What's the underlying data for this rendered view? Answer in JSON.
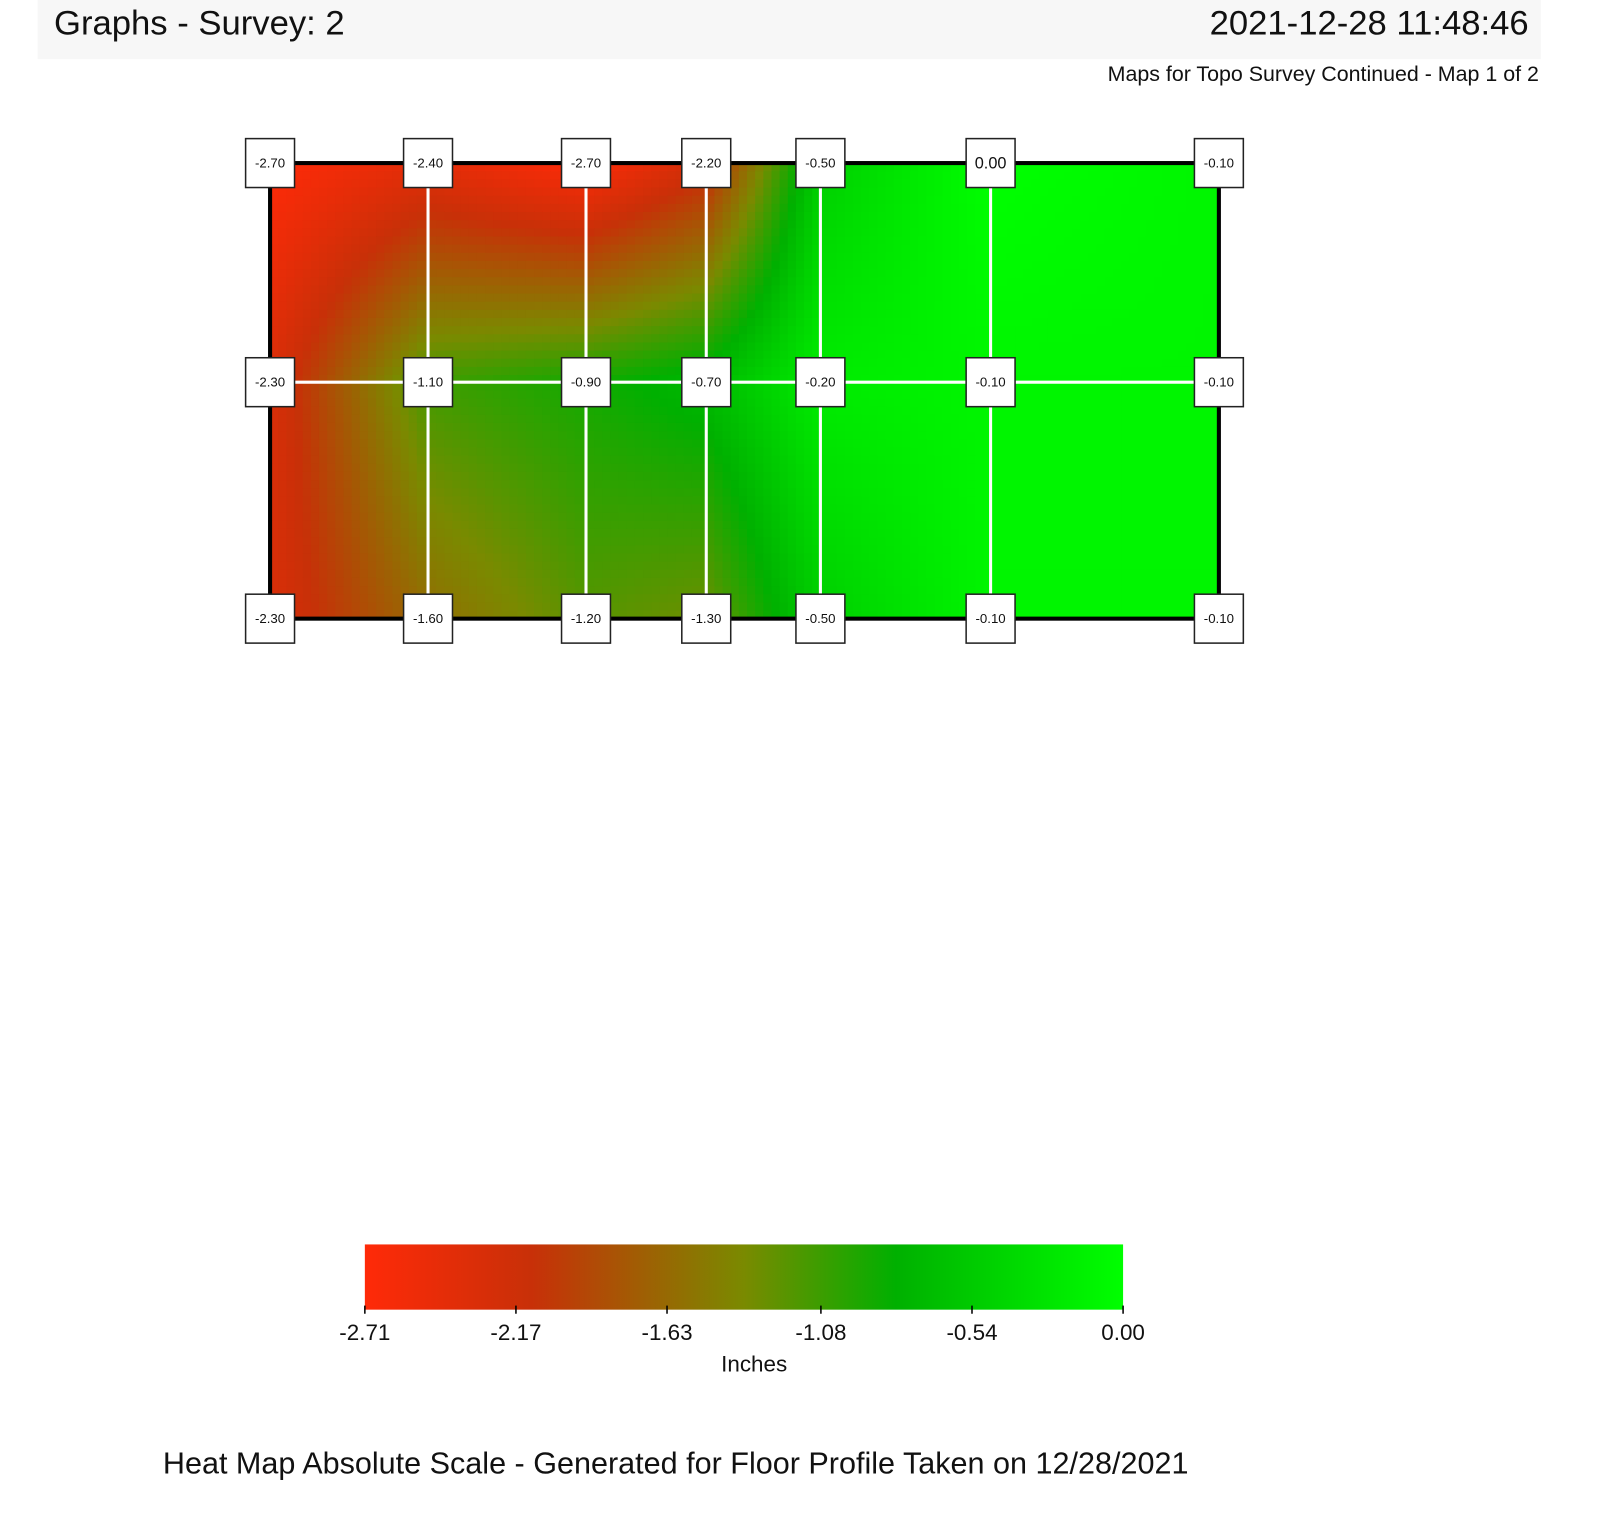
{
  "chart_data": {
    "type": "heatmap",
    "title": "Graphs - Survey: 2",
    "timestamp": "2021-12-28 11:48:46",
    "subtitle": "Maps for Topo Survey Continued - Map 1 of 2",
    "caption": "Heat Map Absolute Scale - Generated for Floor Profile Taken on 12/28/2021",
    "colorbar_label": "Inches",
    "values": [
      [
        -2.7,
        -2.4,
        -2.7,
        -2.2,
        -0.5,
        0,
        -0.1
      ],
      [
        -2.3,
        -1.1,
        -0.9,
        -0.7,
        -0.2,
        -0.1,
        -0.1
      ],
      [
        -2.3,
        -1.6,
        -1.2,
        -1.3,
        -0.5,
        -0.1,
        -0.1
      ]
    ],
    "value_labels": [
      [
        "-2.70",
        "-2.40",
        "-2.70",
        "-2.20",
        "-0.50",
        "0.00",
        "-0.10"
      ],
      [
        "-2.30",
        "-1.10",
        "-0.90",
        "-0.70",
        "-0.20",
        "-0.10",
        "-0.10"
      ],
      [
        "-2.30",
        "-1.60",
        "-1.20",
        "-1.30",
        "-0.50",
        "-0.10",
        "-0.10"
      ]
    ],
    "zlim": [
      -2.71,
      0
    ],
    "zticks": [
      -2.71,
      -2.17,
      -1.63,
      -1.08,
      -0.54,
      {
        "value": 0,
        "label": "0.00"
      }
    ],
    "colorscale": [
      [
        0,
        "#ff2a08"
      ],
      [
        0.22,
        "#c83008"
      ],
      [
        0.5,
        "#7a8a00"
      ],
      [
        0.7,
        "#00b000"
      ],
      [
        1,
        "#00ff00"
      ]
    ]
  }
}
